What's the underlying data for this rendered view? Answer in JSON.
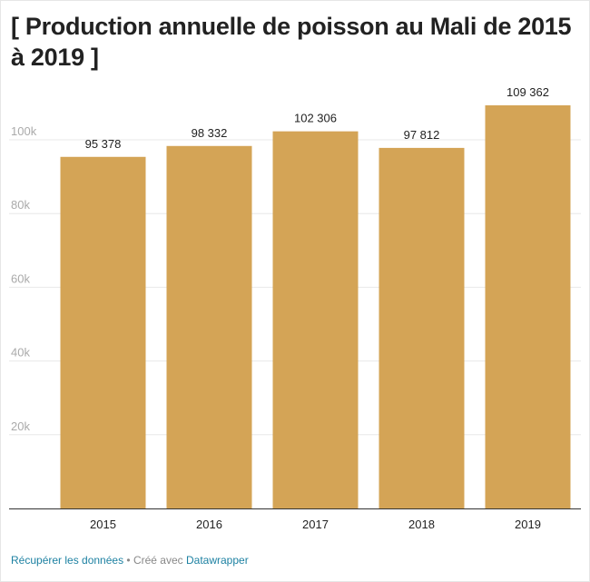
{
  "title": "[ Production annuelle de poisson au Mali de 2015 à 2019 ]",
  "footer": {
    "get_data_label": "Récupérer les données",
    "separator": " • ",
    "created_with": "Créé avec ",
    "tool_name": "Datawrapper"
  },
  "colors": {
    "bar": "#d4a456",
    "grid": "#e8e8e8",
    "axis": "#333333",
    "tick_label": "#aaaaaa",
    "link": "#1d81a2"
  },
  "chart_data": {
    "type": "bar",
    "title": "[ Production annuelle de poisson au Mali de 2015 à 2019 ]",
    "categories": [
      "2015",
      "2016",
      "2017",
      "2018",
      "2019"
    ],
    "values": [
      95378,
      98332,
      102306,
      97812,
      109362
    ],
    "value_labels": [
      "95 378",
      "98 332",
      "102 306",
      "97 812",
      "109 362"
    ],
    "yticks": [
      20000,
      40000,
      60000,
      80000,
      100000
    ],
    "ytick_labels": [
      "20k",
      "40k",
      "60k",
      "80k",
      "100k"
    ],
    "ylim": [
      0,
      110000
    ],
    "xlabel": "",
    "ylabel": "",
    "grid": true,
    "legend": "none"
  }
}
